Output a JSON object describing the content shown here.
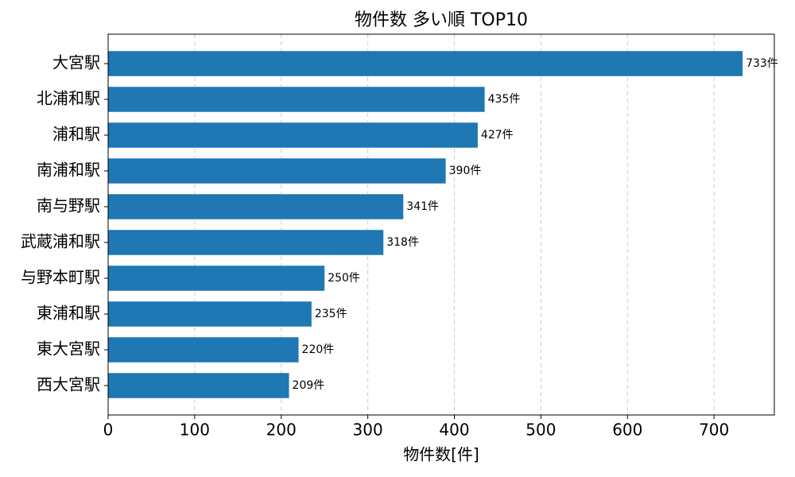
{
  "chart_data": {
    "type": "hbar",
    "title": "物件数 多い順 TOP10",
    "xlabel": "物件数[件]",
    "categories": [
      "大宮駅",
      "北浦和駅",
      "浦和駅",
      "南浦和駅",
      "南与野駅",
      "武蔵浦和駅",
      "与野本町駅",
      "東浦和駅",
      "東大宮駅",
      "西大宮駅"
    ],
    "values": [
      733,
      435,
      427,
      390,
      341,
      318,
      250,
      235,
      220,
      209
    ],
    "value_labels": [
      "733件",
      "435件",
      "427件",
      "390件",
      "341件",
      "318件",
      "250件",
      "235件",
      "220件",
      "209件"
    ],
    "color": "#1f77b4",
    "xlim": [
      0,
      769.65
    ],
    "xticks": [
      0,
      100,
      200,
      300,
      400,
      500,
      600,
      700
    ],
    "grid": true
  }
}
